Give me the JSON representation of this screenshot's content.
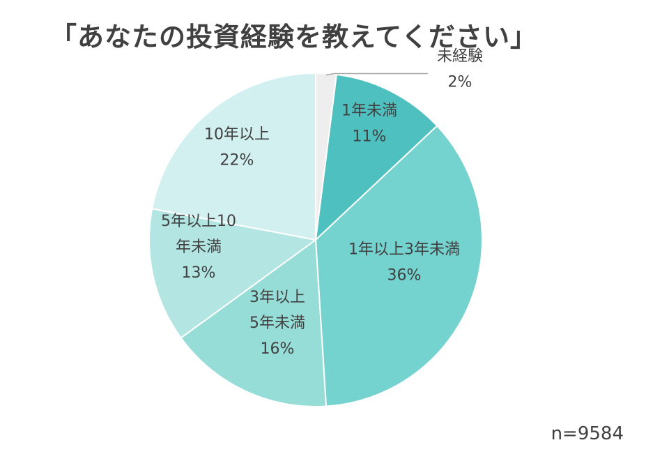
{
  "chart_data": {
    "type": "pie",
    "title": "「あなたの投資経験を教えてください」",
    "note": "n=9584",
    "slices": [
      {
        "lines": [
          "未経験",
          "2%"
        ],
        "value": 2,
        "color": "#eeeeee"
      },
      {
        "lines": [
          "1年未満",
          "11%"
        ],
        "value": 11,
        "color": "#4ec0c0"
      },
      {
        "lines": [
          "1年以上3年未満",
          "36%"
        ],
        "value": 36,
        "color": "#74d2cf"
      },
      {
        "lines": [
          "3年以上",
          "5年未満",
          "16%"
        ],
        "value": 16,
        "color": "#96dcd7"
      },
      {
        "lines": [
          "5年以上10",
          "年未満",
          "13%"
        ],
        "value": 13,
        "color": "#b3e6e3"
      },
      {
        "lines": [
          "10年以上",
          "22%"
        ],
        "value": 22,
        "color": "#d3f0f1"
      }
    ]
  }
}
